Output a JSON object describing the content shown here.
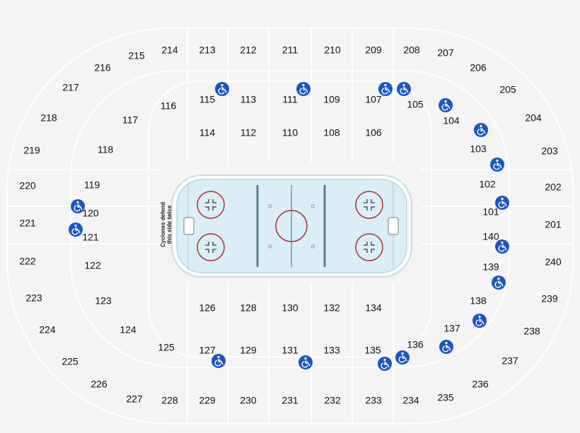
{
  "sections": [
    "214",
    "213",
    "212",
    "211",
    "210",
    "209",
    "208",
    "207",
    "206",
    "205",
    "204",
    "203",
    "202",
    "201",
    "240",
    "239",
    "238",
    "237",
    "236",
    "235",
    "234",
    "233",
    "232",
    "231",
    "230",
    "229",
    "228",
    "227",
    "226",
    "225",
    "224",
    "223",
    "222",
    "221",
    "220",
    "219",
    "218",
    "217",
    "216",
    "215",
    "116",
    "115",
    "113",
    "111",
    "109",
    "107",
    "105",
    "104",
    "103",
    "102",
    "101",
    "140",
    "139",
    "138",
    "137",
    "136",
    "135",
    "133",
    "131",
    "129",
    "127",
    "125",
    "124",
    "123",
    "122",
    "121",
    "120",
    "119",
    "118",
    "117",
    "114",
    "112",
    "110",
    "108",
    "106",
    "126",
    "128",
    "130",
    "132",
    "134"
  ],
  "rink_note": [
    "Cyclones defend",
    "this side twice"
  ]
}
